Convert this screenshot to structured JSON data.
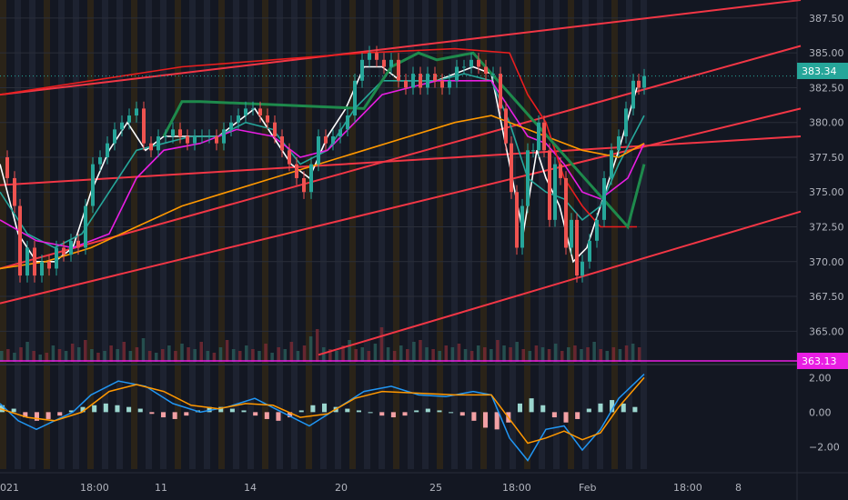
{
  "chart_data": {
    "type": "candlestick",
    "price_axis": {
      "ticks": [
        "387.50",
        "385.00",
        "382.50",
        "380.00",
        "377.50",
        "375.00",
        "372.50",
        "370.00",
        "367.50",
        "365.00"
      ],
      "tick_values": [
        387.5,
        385,
        382.5,
        380,
        377.5,
        375,
        372.5,
        370,
        367.5,
        365
      ],
      "range": [
        362.8,
        388.8
      ]
    },
    "macd_axis": {
      "ticks": [
        "2.00",
        "0.00",
        "−2.00"
      ],
      "tick_values": [
        2,
        0,
        -2
      ],
      "range": [
        -3.3,
        2.6
      ]
    },
    "time_axis": {
      "labels": [
        "021",
        "18:00",
        "11",
        "14",
        "20",
        "25",
        "18:00",
        "Feb",
        "18:00",
        "8"
      ]
    },
    "last_price": {
      "label": "383.34",
      "value": 383.34,
      "color": "#26a69a"
    },
    "line_level": {
      "label": "363.13",
      "value": 363.13,
      "color": "#e91ee3"
    },
    "price_path": [
      [
        0,
        377.5
      ],
      [
        8,
        376
      ],
      [
        16,
        374
      ],
      [
        22,
        369
      ],
      [
        30,
        371
      ],
      [
        38,
        369
      ],
      [
        46,
        370
      ],
      [
        54,
        369.5
      ],
      [
        62,
        371
      ],
      [
        70,
        370.5
      ],
      [
        78,
        371.5
      ],
      [
        86,
        371
      ],
      [
        94,
        374
      ],
      [
        102,
        377
      ],
      [
        110,
        377.5
      ],
      [
        118,
        378.5
      ],
      [
        126,
        379.5
      ],
      [
        134,
        380
      ],
      [
        142,
        380.5
      ],
      [
        150,
        381
      ],
      [
        158,
        378.5
      ],
      [
        166,
        378
      ],
      [
        174,
        379
      ],
      [
        182,
        379
      ],
      [
        190,
        379.5
      ],
      [
        198,
        379
      ],
      [
        206,
        378.5
      ],
      [
        214,
        379
      ],
      [
        222,
        379
      ],
      [
        230,
        379
      ],
      [
        238,
        378.5
      ],
      [
        246,
        379.5
      ],
      [
        254,
        380
      ],
      [
        262,
        380.5
      ],
      [
        270,
        381
      ],
      [
        278,
        381
      ],
      [
        286,
        380.5
      ],
      [
        294,
        380
      ],
      [
        302,
        379
      ],
      [
        310,
        378
      ],
      [
        318,
        377
      ],
      [
        326,
        376
      ],
      [
        334,
        375
      ],
      [
        342,
        377
      ],
      [
        350,
        379
      ],
      [
        358,
        378.5
      ],
      [
        366,
        379
      ],
      [
        374,
        379.5
      ],
      [
        382,
        380.5
      ],
      [
        390,
        383
      ],
      [
        398,
        384.5
      ],
      [
        406,
        385
      ],
      [
        414,
        384.5
      ],
      [
        422,
        384
      ],
      [
        430,
        384.5
      ],
      [
        438,
        383
      ],
      [
        446,
        382.5
      ],
      [
        454,
        383.5
      ],
      [
        462,
        382.5
      ],
      [
        470,
        383.5
      ],
      [
        478,
        383
      ],
      [
        486,
        382.5
      ],
      [
        494,
        383
      ],
      [
        502,
        384
      ],
      [
        510,
        384
      ],
      [
        518,
        384.5
      ],
      [
        526,
        384
      ],
      [
        534,
        383.5
      ],
      [
        542,
        383.5
      ],
      [
        550,
        381
      ],
      [
        556,
        378.5
      ],
      [
        562,
        375
      ],
      [
        568,
        371
      ],
      [
        574,
        374
      ],
      [
        580,
        378
      ],
      [
        586,
        378
      ],
      [
        592,
        380
      ],
      [
        598,
        378
      ],
      [
        604,
        373
      ],
      [
        610,
        377
      ],
      [
        616,
        376
      ],
      [
        622,
        371
      ],
      [
        628,
        373
      ],
      [
        634,
        369
      ],
      [
        640,
        370
      ],
      [
        648,
        371.5
      ],
      [
        656,
        373
      ],
      [
        664,
        376
      ],
      [
        672,
        378
      ],
      [
        680,
        379
      ],
      [
        688,
        381
      ],
      [
        696,
        383
      ],
      [
        702,
        382.5
      ],
      [
        708,
        383.34
      ]
    ],
    "volume": {
      "max": 100,
      "values": [
        30,
        35,
        25,
        40,
        55,
        30,
        20,
        25,
        45,
        35,
        30,
        50,
        40,
        60,
        35,
        25,
        30,
        45,
        35,
        55,
        30,
        40,
        65,
        30,
        25,
        35,
        45,
        30,
        50,
        40,
        35,
        55,
        30,
        25,
        40,
        60,
        35,
        30,
        45,
        35,
        30,
        50,
        25,
        40,
        35,
        55,
        30,
        45,
        70,
        90,
        40,
        35,
        30,
        45,
        60,
        35,
        40,
        30,
        50,
        95,
        40,
        30,
        45,
        35,
        55,
        60,
        40,
        35,
        30,
        45,
        40,
        50,
        35,
        30,
        45,
        40,
        35,
        60,
        45,
        40,
        55,
        35,
        30,
        45,
        40,
        35,
        50,
        30,
        40,
        45,
        35,
        40,
        55,
        35,
        30,
        40,
        35,
        45,
        50,
        40
      ]
    },
    "series": [
      {
        "kind": "line",
        "color": "#ffffff",
        "points": [
          [
            0,
            377
          ],
          [
            20,
            372
          ],
          [
            40,
            370
          ],
          [
            60,
            370
          ],
          [
            80,
            371
          ],
          [
            100,
            375
          ],
          [
            120,
            378
          ],
          [
            140,
            380
          ],
          [
            160,
            378
          ],
          [
            180,
            379
          ],
          [
            200,
            379
          ],
          [
            220,
            379
          ],
          [
            240,
            379
          ],
          [
            260,
            380
          ],
          [
            280,
            381
          ],
          [
            300,
            379
          ],
          [
            320,
            377
          ],
          [
            340,
            376
          ],
          [
            360,
            379
          ],
          [
            380,
            381
          ],
          [
            400,
            384
          ],
          [
            420,
            384
          ],
          [
            440,
            383
          ],
          [
            460,
            383
          ],
          [
            480,
            383
          ],
          [
            500,
            383.5
          ],
          [
            520,
            384
          ],
          [
            540,
            383.5
          ],
          [
            560,
            377
          ],
          [
            575,
            372
          ],
          [
            590,
            378
          ],
          [
            600,
            376
          ],
          [
            615,
            374
          ],
          [
            630,
            370
          ],
          [
            645,
            371
          ],
          [
            660,
            374
          ],
          [
            680,
            378
          ],
          [
            700,
            382.5
          ]
        ]
      },
      {
        "kind": "line",
        "color": "#26a69a",
        "points": [
          [
            0,
            375
          ],
          [
            30,
            372
          ],
          [
            60,
            371
          ],
          [
            90,
            372
          ],
          [
            120,
            375
          ],
          [
            150,
            378
          ],
          [
            180,
            378.5
          ],
          [
            210,
            379
          ],
          [
            240,
            379
          ],
          [
            270,
            380
          ],
          [
            300,
            379.5
          ],
          [
            330,
            377
          ],
          [
            360,
            378
          ],
          [
            390,
            381
          ],
          [
            420,
            383
          ],
          [
            450,
            383
          ],
          [
            480,
            383
          ],
          [
            510,
            383.5
          ],
          [
            540,
            383
          ],
          [
            560,
            380
          ],
          [
            580,
            376
          ],
          [
            600,
            375
          ],
          [
            620,
            374.5
          ],
          [
            640,
            373
          ],
          [
            660,
            374
          ],
          [
            680,
            377
          ],
          [
            708,
            380.5
          ]
        ]
      },
      {
        "kind": "line",
        "color": "#e91ee3",
        "points": [
          [
            0,
            373
          ],
          [
            40,
            371.5
          ],
          [
            80,
            371
          ],
          [
            120,
            372
          ],
          [
            150,
            376
          ],
          [
            180,
            378
          ],
          [
            220,
            378.5
          ],
          [
            260,
            379.5
          ],
          [
            300,
            379
          ],
          [
            330,
            377.5
          ],
          [
            360,
            378
          ],
          [
            390,
            380
          ],
          [
            420,
            382
          ],
          [
            450,
            382.5
          ],
          [
            480,
            383
          ],
          [
            510,
            383
          ],
          [
            540,
            383
          ],
          [
            560,
            381
          ],
          [
            580,
            379
          ],
          [
            600,
            378.5
          ],
          [
            620,
            377
          ],
          [
            640,
            375
          ],
          [
            660,
            374.5
          ],
          [
            690,
            376
          ],
          [
            708,
            378.5
          ]
        ]
      },
      {
        "kind": "line",
        "color": "#ff9800",
        "points": [
          [
            0,
            369.5
          ],
          [
            50,
            370
          ],
          [
            100,
            371
          ],
          [
            150,
            372.5
          ],
          [
            200,
            374
          ],
          [
            250,
            375
          ],
          [
            300,
            376
          ],
          [
            350,
            377
          ],
          [
            400,
            378
          ],
          [
            450,
            379
          ],
          [
            500,
            380
          ],
          [
            540,
            380.5
          ],
          [
            560,
            380
          ],
          [
            600,
            379
          ],
          [
            640,
            378
          ],
          [
            680,
            377.5
          ],
          [
            708,
            378.5
          ]
        ]
      },
      {
        "kind": "line",
        "color": "#e91e1e",
        "points": [
          [
            0,
            382
          ],
          [
            100,
            383
          ],
          [
            200,
            384
          ],
          [
            300,
            384.5
          ],
          [
            400,
            385
          ],
          [
            500,
            385.3
          ],
          [
            560,
            385
          ],
          [
            580,
            382
          ],
          [
            600,
            380
          ],
          [
            620,
            376
          ],
          [
            640,
            374
          ],
          [
            660,
            372.5
          ],
          [
            700,
            372.5
          ]
        ]
      },
      {
        "kind": "line",
        "color": "#1e8a4c",
        "points": [
          [
            180,
            379
          ],
          [
            200,
            381.5
          ],
          [
            220,
            381.5
          ],
          [
            400,
            381
          ],
          [
            430,
            384
          ],
          [
            460,
            385
          ],
          [
            480,
            384.5
          ],
          [
            520,
            385
          ],
          [
            690,
            372.5
          ],
          [
            708,
            377
          ]
        ]
      }
    ],
    "trendlines": [
      {
        "points": [
          [
            0,
            382
          ],
          [
            880,
            388.8
          ]
        ],
        "color": "#f23645"
      },
      {
        "points": [
          [
            0,
            369.5
          ],
          [
            880,
            385.5
          ]
        ],
        "color": "#f23645"
      },
      {
        "points": [
          [
            0,
            367
          ],
          [
            880,
            381
          ]
        ],
        "color": "#f23645"
      },
      {
        "points": [
          [
            0,
            375.5
          ],
          [
            880,
            379
          ]
        ],
        "color": "#f23645"
      },
      {
        "points": [
          [
            350,
            363.3
          ],
          [
            880,
            373.6
          ]
        ],
        "color": "#f23645"
      }
    ],
    "macd_series": [
      {
        "color": "#2196f3",
        "points": [
          [
            0,
            0.5
          ],
          [
            20,
            -0.5
          ],
          [
            40,
            -1
          ],
          [
            60,
            -0.5
          ],
          [
            80,
            0
          ],
          [
            100,
            1
          ],
          [
            130,
            1.8
          ],
          [
            160,
            1.5
          ],
          [
            190,
            0.5
          ],
          [
            220,
            0
          ],
          [
            250,
            0.3
          ],
          [
            280,
            0.8
          ],
          [
            310,
            0
          ],
          [
            340,
            -0.8
          ],
          [
            370,
            0.2
          ],
          [
            400,
            1.2
          ],
          [
            430,
            1.5
          ],
          [
            460,
            1.0
          ],
          [
            490,
            0.9
          ],
          [
            520,
            1.2
          ],
          [
            540,
            1.0
          ],
          [
            560,
            -1.5
          ],
          [
            580,
            -2.8
          ],
          [
            600,
            -1
          ],
          [
            620,
            -0.8
          ],
          [
            640,
            -2.2
          ],
          [
            660,
            -1
          ],
          [
            680,
            0.8
          ],
          [
            708,
            2.2
          ]
        ]
      },
      {
        "color": "#ff9800",
        "points": [
          [
            0,
            0.2
          ],
          [
            30,
            -0.3
          ],
          [
            60,
            -0.5
          ],
          [
            90,
            0
          ],
          [
            120,
            1.2
          ],
          [
            150,
            1.6
          ],
          [
            180,
            1.2
          ],
          [
            210,
            0.4
          ],
          [
            240,
            0.2
          ],
          [
            270,
            0.5
          ],
          [
            300,
            0.4
          ],
          [
            330,
            -0.3
          ],
          [
            360,
            -0.1
          ],
          [
            390,
            0.8
          ],
          [
            420,
            1.2
          ],
          [
            460,
            1.1
          ],
          [
            500,
            1.0
          ],
          [
            540,
            1.0
          ],
          [
            560,
            -0.4
          ],
          [
            580,
            -1.8
          ],
          [
            600,
            -1.5
          ],
          [
            620,
            -1.1
          ],
          [
            640,
            -1.6
          ],
          [
            660,
            -1.2
          ],
          [
            680,
            0.3
          ],
          [
            708,
            2.0
          ]
        ]
      }
    ],
    "macd_hist": [
      0.4,
      0.2,
      -0.3,
      -0.5,
      -0.4,
      -0.2,
      0.1,
      0.3,
      0.4,
      0.5,
      0.4,
      0.3,
      0.2,
      -0.1,
      -0.3,
      -0.4,
      -0.2,
      0.1,
      0.3,
      0.3,
      0.2,
      0.1,
      -0.2,
      -0.4,
      -0.5,
      -0.3,
      0.1,
      0.4,
      0.5,
      0.3,
      0.2,
      0.1,
      0,
      -0.2,
      -0.3,
      -0.2,
      0.1,
      0.2,
      0.1,
      0,
      -0.2,
      -0.5,
      -0.9,
      -1.0,
      -0.6,
      0.5,
      0.8,
      0.4,
      -0.3,
      -0.6,
      -0.4,
      0.2,
      0.5,
      0.7,
      0.5,
      0.3
    ]
  }
}
